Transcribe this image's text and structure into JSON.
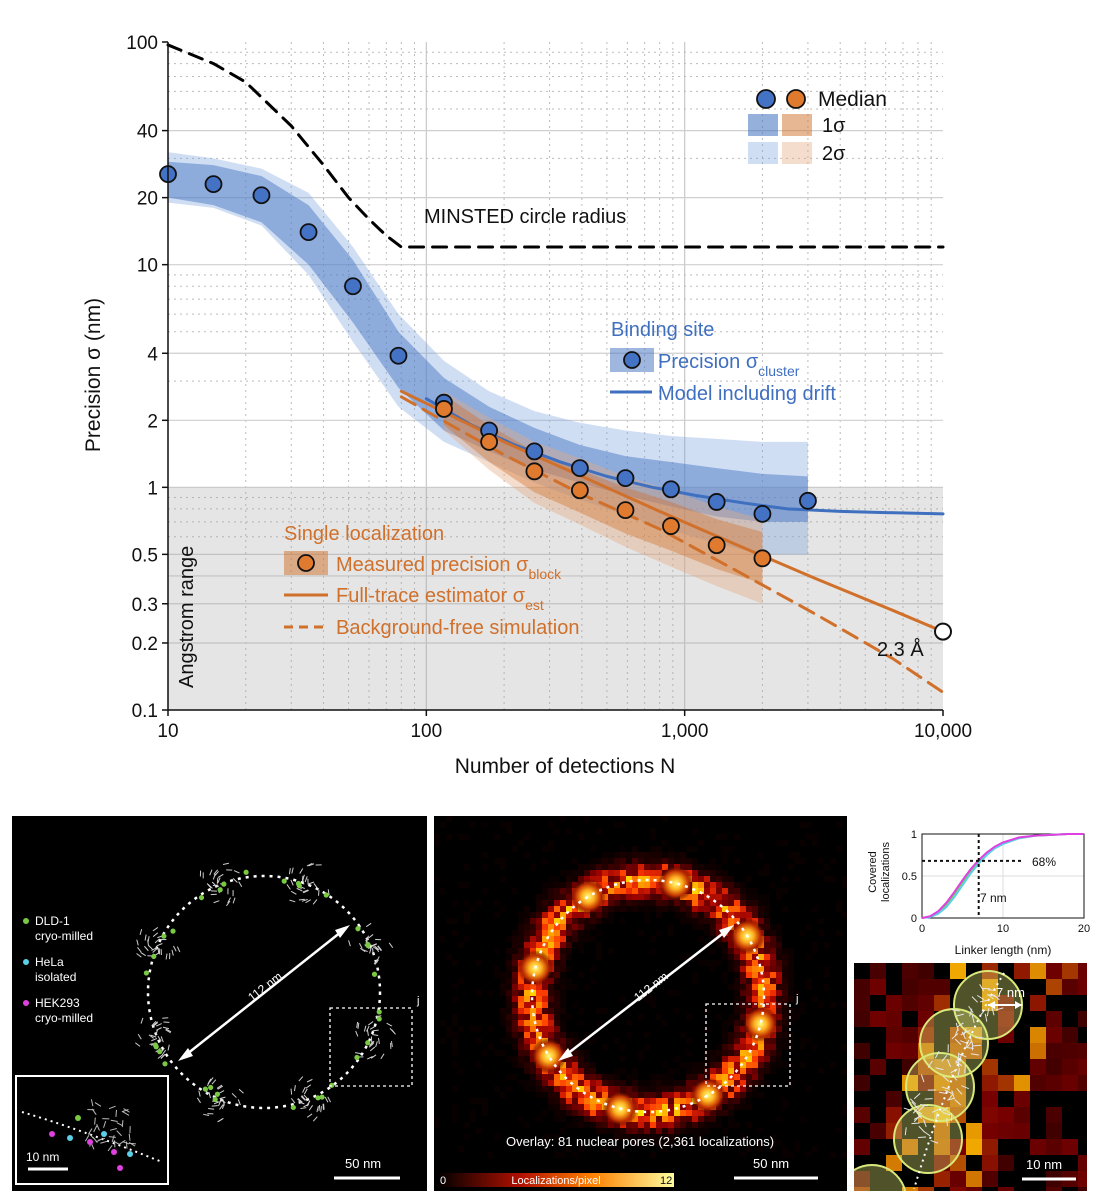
{
  "chart_data": [
    {
      "type": "line",
      "xlabel": "Number of detections N",
      "ylabel": "Precision σ (nm)",
      "xscale": "log",
      "yscale": "log",
      "xlim": [
        10,
        10000
      ],
      "ylim": [
        0.1,
        100
      ],
      "grid": true,
      "x_ticks": [
        {
          "v": 10,
          "label": "10"
        },
        {
          "v": 100,
          "label": "100"
        },
        {
          "v": 1000,
          "label": "1,000"
        },
        {
          "v": 10000,
          "label": "10,000"
        }
      ],
      "y_ticks": [
        {
          "v": 100,
          "label": "100"
        },
        {
          "v": 40,
          "label": "40"
        },
        {
          "v": 20,
          "label": "20"
        },
        {
          "v": 10,
          "label": "10"
        },
        {
          "v": 4,
          "label": "4"
        },
        {
          "v": 2,
          "label": "2"
        },
        {
          "v": 1,
          "label": "1"
        },
        {
          "v": 0.5,
          "label": "0.5"
        },
        {
          "v": 0.3,
          "label": "0.3"
        },
        {
          "v": 0.2,
          "label": "0.2"
        },
        {
          "v": 0.1,
          "label": "0.1"
        }
      ],
      "shaded_region": {
        "label": "Angstrom range",
        "y_range": [
          0.1,
          1
        ]
      },
      "minsted": {
        "label": "MINSTED circle radius",
        "x": [
          10,
          15,
          20,
          30,
          40,
          50,
          60,
          70,
          80,
          10000
        ],
        "y": [
          97,
          80,
          66,
          42,
          28,
          20,
          16,
          13.5,
          12,
          12
        ]
      },
      "binding_site": {
        "header": "Binding site",
        "median_label": "Precision σ",
        "median_sub": "cluster",
        "model_label": "Model including drift",
        "color": "#3f6fbf",
        "x": [
          10,
          15,
          23,
          35,
          52,
          78,
          117,
          175,
          262,
          393,
          590,
          885,
          1330,
          2000,
          3000
        ],
        "y": [
          25.5,
          23,
          20.5,
          14,
          8,
          3.9,
          2.4,
          1.8,
          1.45,
          1.22,
          1.1,
          0.98,
          0.86,
          0.76,
          0.87
        ],
        "band1_lower": [
          20,
          18.5,
          15.5,
          10,
          5.5,
          2.8,
          1.8,
          1.45,
          1.2,
          1.05,
          0.92,
          0.82,
          0.74,
          0.7,
          0.7
        ],
        "band1_upper": [
          29,
          28,
          25,
          18.5,
          10.5,
          5,
          3.1,
          2.3,
          1.85,
          1.55,
          1.38,
          1.3,
          1.22,
          1.15,
          1.12
        ],
        "band2_lower": [
          19,
          18,
          15,
          9,
          4.5,
          2.3,
          1.6,
          1.3,
          1.05,
          0.88,
          0.75,
          0.64,
          0.56,
          0.5,
          0.5
        ],
        "band2_upper": [
          32,
          30,
          27,
          21,
          12,
          6,
          3.7,
          2.7,
          2.2,
          1.95,
          1.8,
          1.7,
          1.65,
          1.6,
          1.6
        ],
        "model_x": [
          100,
          150,
          220,
          330,
          500,
          750,
          1100,
          1700,
          2500,
          4000,
          6000,
          10000
        ],
        "model_y": [
          2.5,
          1.9,
          1.55,
          1.3,
          1.12,
          1.0,
          0.92,
          0.85,
          0.8,
          0.78,
          0.77,
          0.76
        ]
      },
      "single_localization": {
        "header": "Single localization",
        "median_label": "Measured precision σ",
        "median_sub": "block",
        "estimator_label": "Full-trace estimator σ",
        "estimator_sub": "est",
        "simulation_label": "Background-free simulation",
        "color": "#d0702a",
        "x": [
          117,
          175,
          262,
          393,
          590,
          885,
          1330,
          2000
        ],
        "y": [
          2.25,
          1.6,
          1.18,
          0.97,
          0.79,
          0.67,
          0.55,
          0.48
        ],
        "band1_lower": [
          1.9,
          1.3,
          0.95,
          0.77,
          0.62,
          0.52,
          0.43,
          0.37
        ],
        "band1_upper": [
          2.6,
          1.9,
          1.45,
          1.2,
          1.0,
          0.86,
          0.72,
          0.63
        ],
        "band2_lower": [
          1.8,
          1.2,
          0.85,
          0.68,
          0.54,
          0.44,
          0.36,
          0.3
        ],
        "band2_upper": [
          2.7,
          2.05,
          1.6,
          1.35,
          1.12,
          0.97,
          0.82,
          0.72
        ],
        "estimator_x": [
          80,
          120,
          200,
          400,
          800,
          1600,
          3200,
          6400,
          10000
        ],
        "estimator_y": [
          2.7,
          2.15,
          1.6,
          1.12,
          0.78,
          0.55,
          0.39,
          0.28,
          0.225
        ],
        "simulation_x": [
          80,
          120,
          200,
          400,
          800,
          1600,
          3200,
          6400,
          10000
        ],
        "simulation_y": [
          2.55,
          1.95,
          1.4,
          0.93,
          0.65,
          0.42,
          0.27,
          0.17,
          0.12
        ]
      },
      "endpoint": {
        "x": 10000,
        "y": 0.225,
        "label": "2.3 Å"
      },
      "legend": {
        "median": "Median",
        "sigma1": "1σ",
        "sigma2": "2σ",
        "position": "top-right"
      }
    },
    {
      "type": "line",
      "xlabel": "Linker length (nm)",
      "ylabel": "Covered localizations",
      "xlim": [
        0,
        20
      ],
      "ylim": [
        0,
        1
      ],
      "x_ticks": [
        {
          "v": 0,
          "label": "0"
        },
        {
          "v": 10,
          "label": "10"
        },
        {
          "v": 20,
          "label": "20"
        }
      ],
      "y_ticks": [
        {
          "v": 0,
          "label": "0"
        },
        {
          "v": 0.5,
          "label": "0.5"
        },
        {
          "v": 1,
          "label": "1"
        }
      ],
      "crosshair": {
        "x": 7,
        "y": 0.68,
        "x_label": "7 nm",
        "y_label": "68%"
      },
      "series": [
        {
          "color": "#7ac943",
          "x": [
            0,
            1,
            2,
            3,
            4,
            5,
            6,
            7,
            8,
            9,
            10,
            12,
            14,
            16,
            18,
            20
          ],
          "y": [
            0,
            0.02,
            0.07,
            0.16,
            0.29,
            0.43,
            0.56,
            0.68,
            0.77,
            0.84,
            0.89,
            0.95,
            0.98,
            0.99,
            1.0,
            1.0
          ]
        },
        {
          "color": "#5ad0e8",
          "x": [
            0,
            1,
            2,
            3,
            4,
            5,
            6,
            7,
            8,
            9,
            10,
            12,
            14,
            16,
            18,
            20
          ],
          "y": [
            0,
            0.01,
            0.05,
            0.13,
            0.25,
            0.39,
            0.53,
            0.65,
            0.75,
            0.83,
            0.88,
            0.95,
            0.98,
            0.99,
            1.0,
            1.0
          ]
        },
        {
          "color": "#e040e0",
          "x": [
            0,
            1,
            2,
            3,
            4,
            5,
            6,
            7,
            8,
            9,
            10,
            12,
            14,
            16,
            18,
            20
          ],
          "y": [
            0,
            0.02,
            0.08,
            0.18,
            0.31,
            0.45,
            0.58,
            0.69,
            0.78,
            0.85,
            0.9,
            0.96,
            0.98,
            0.99,
            1.0,
            1.0
          ]
        }
      ]
    }
  ],
  "panels": {
    "left": {
      "diameter_label": "112 nm",
      "scale_label": "50 nm",
      "box_label": "j",
      "inset_scale_label": "10 nm",
      "legend": [
        {
          "color": "#7ac943",
          "line1": "DLD-1",
          "line2": "cryo-milled"
        },
        {
          "color": "#5ad0e8",
          "line1": "HeLa",
          "line2": "isolated"
        },
        {
          "color": "#e040e0",
          "line1": "HEK293",
          "line2": "cryo-milled"
        }
      ]
    },
    "middle": {
      "diameter_label": "112 nm",
      "box_label": "j",
      "overlay_caption": "Overlay: 81 nuclear pores (2,361 localizations)",
      "scale_label": "50 nm",
      "colorbar_min": "0",
      "colorbar_label": "Localizations/pixel",
      "colorbar_max": "12"
    },
    "inset": {
      "distance_label": "7 nm",
      "scale_label": "10 nm"
    }
  }
}
